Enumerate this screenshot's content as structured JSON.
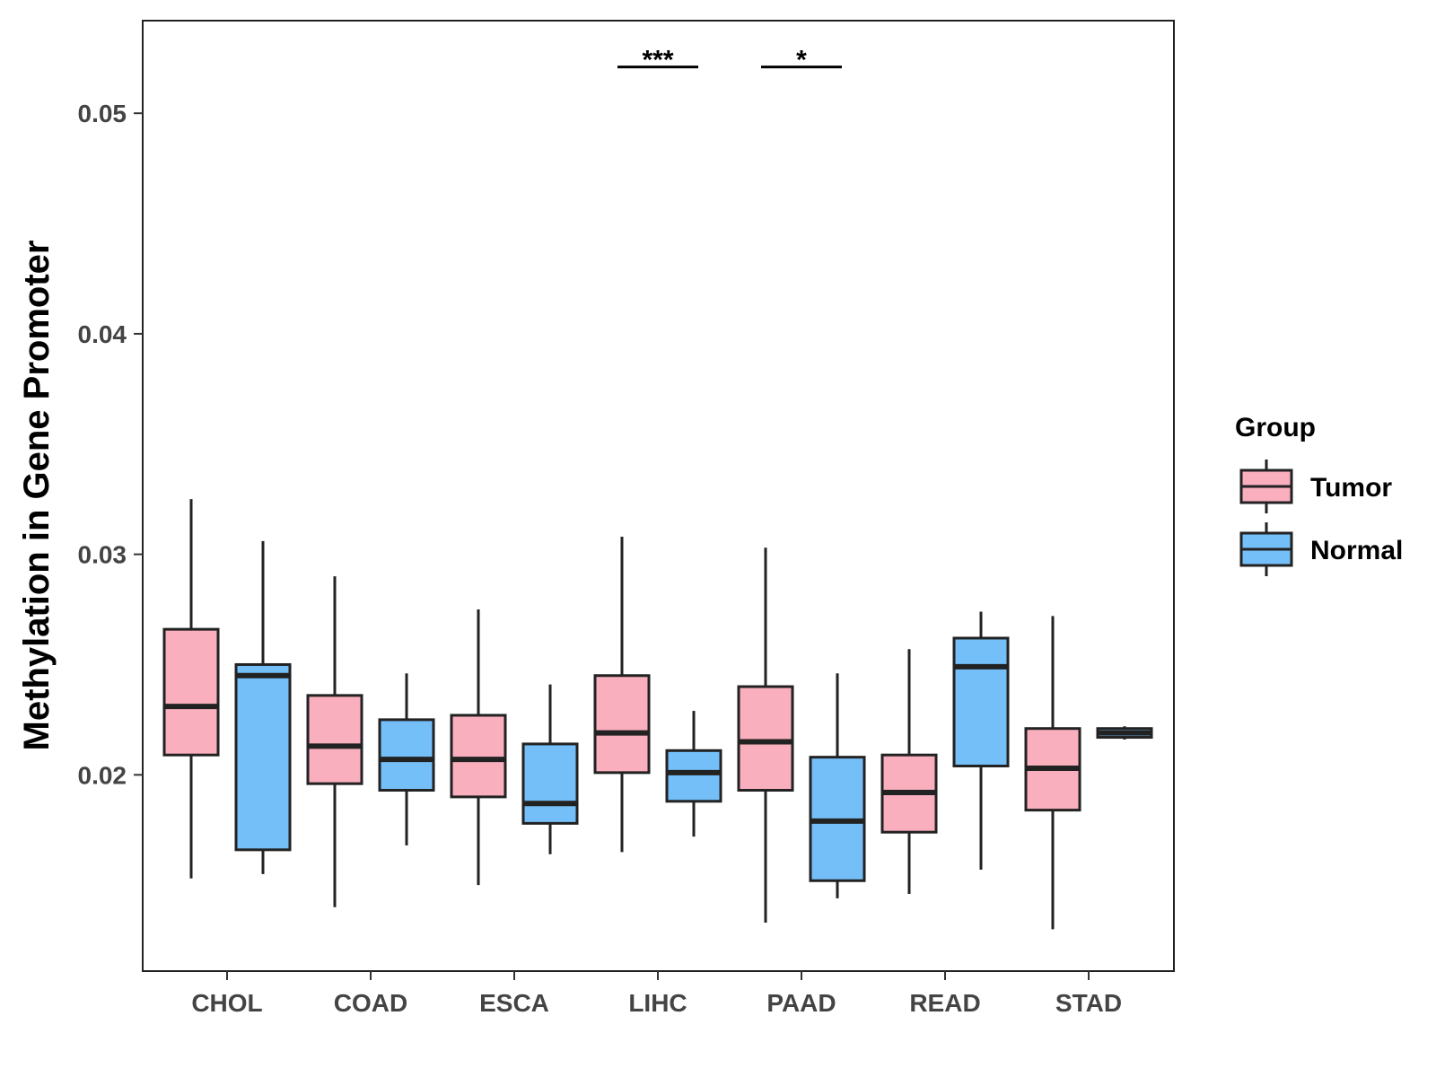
{
  "chart_data": {
    "type": "boxplot",
    "ylabel": "Methylation in Gene Promoter",
    "xlabel": "",
    "ylim": [
      0.0111,
      0.0542
    ],
    "yticks": [
      0.02,
      0.03,
      0.04,
      0.05
    ],
    "ytick_labels": [
      "0.02",
      "0.03",
      "0.04",
      "0.05"
    ],
    "categories": [
      "CHOL",
      "COAD",
      "ESCA",
      "LIHC",
      "PAAD",
      "READ",
      "STAD"
    ],
    "legend": {
      "title": "Group",
      "position": "right",
      "entries": [
        {
          "name": "Tumor",
          "color": "#FAAFBE"
        },
        {
          "name": "Normal",
          "color": "#75BFF8"
        }
      ]
    },
    "series": [
      {
        "name": "Tumor",
        "color": "#FAAFBE",
        "boxes": [
          {
            "category": "CHOL",
            "whisker_low": 0.0153,
            "q1": 0.0209,
            "median": 0.0231,
            "q3": 0.0266,
            "whisker_high": 0.0325
          },
          {
            "category": "COAD",
            "whisker_low": 0.014,
            "q1": 0.0196,
            "median": 0.0213,
            "q3": 0.0236,
            "whisker_high": 0.029
          },
          {
            "category": "ESCA",
            "whisker_low": 0.015,
            "q1": 0.019,
            "median": 0.0207,
            "q3": 0.0227,
            "whisker_high": 0.0275
          },
          {
            "category": "LIHC",
            "whisker_low": 0.0165,
            "q1": 0.0201,
            "median": 0.0219,
            "q3": 0.0245,
            "whisker_high": 0.0308
          },
          {
            "category": "PAAD",
            "whisker_low": 0.0133,
            "q1": 0.0193,
            "median": 0.0215,
            "q3": 0.024,
            "whisker_high": 0.0303
          },
          {
            "category": "READ",
            "whisker_low": 0.0146,
            "q1": 0.0174,
            "median": 0.0192,
            "q3": 0.0209,
            "whisker_high": 0.0257
          },
          {
            "category": "STAD",
            "whisker_low": 0.013,
            "q1": 0.0184,
            "median": 0.0203,
            "q3": 0.0221,
            "whisker_high": 0.0272
          }
        ]
      },
      {
        "name": "Normal",
        "color": "#75BFF8",
        "boxes": [
          {
            "category": "CHOL",
            "whisker_low": 0.0155,
            "q1": 0.0166,
            "median": 0.0245,
            "q3": 0.025,
            "whisker_high": 0.0306
          },
          {
            "category": "COAD",
            "whisker_low": 0.0168,
            "q1": 0.0193,
            "median": 0.0207,
            "q3": 0.0225,
            "whisker_high": 0.0246
          },
          {
            "category": "ESCA",
            "whisker_low": 0.0164,
            "q1": 0.0178,
            "median": 0.0187,
            "q3": 0.0214,
            "whisker_high": 0.0241
          },
          {
            "category": "LIHC",
            "whisker_low": 0.0172,
            "q1": 0.0188,
            "median": 0.0201,
            "q3": 0.0211,
            "whisker_high": 0.0229
          },
          {
            "category": "PAAD",
            "whisker_low": 0.0144,
            "q1": 0.0152,
            "median": 0.0179,
            "q3": 0.0208,
            "whisker_high": 0.0246
          },
          {
            "category": "READ",
            "whisker_low": 0.0157,
            "q1": 0.0204,
            "median": 0.0249,
            "q3": 0.0262,
            "whisker_high": 0.0274
          },
          {
            "category": "STAD",
            "whisker_low": 0.0216,
            "q1": 0.0217,
            "median": 0.0219,
            "q3": 0.0221,
            "whisker_high": 0.0222
          }
        ]
      }
    ],
    "annotations": [
      {
        "category": "LIHC",
        "label": "***",
        "y": 0.0521
      },
      {
        "category": "PAAD",
        "label": "*",
        "y": 0.0521
      }
    ]
  }
}
